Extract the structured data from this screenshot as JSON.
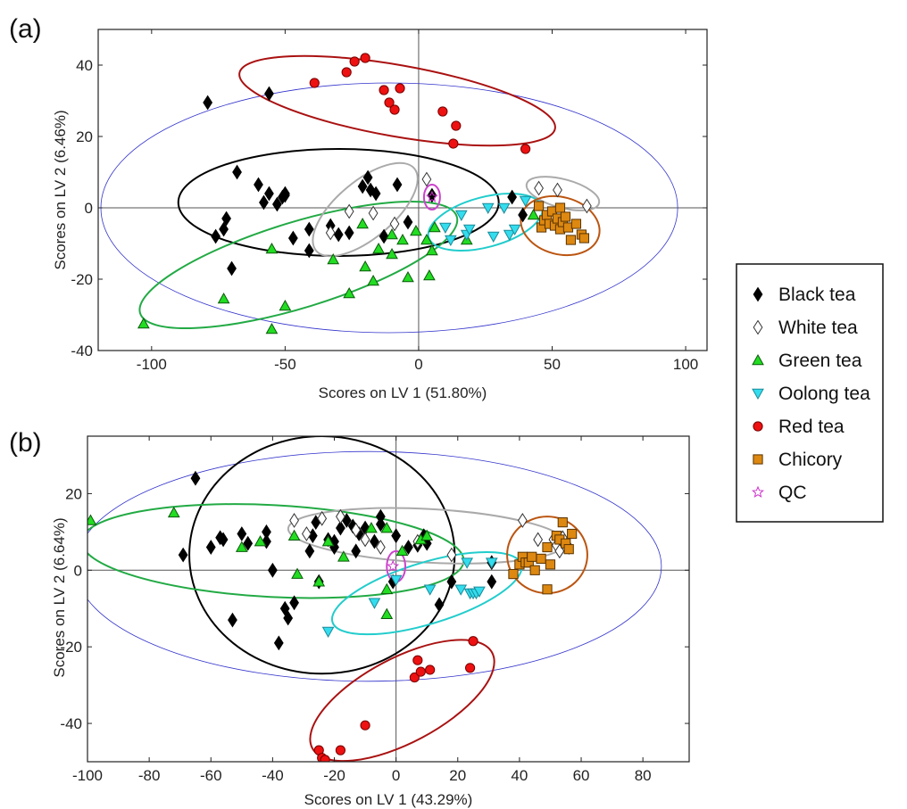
{
  "legend": {
    "entries": [
      {
        "name": "Black tea",
        "marker": "diamond",
        "fill": "#000000",
        "stroke": "#000000"
      },
      {
        "name": "White tea",
        "marker": "diamond",
        "fill": "#ffffff",
        "stroke": "#333333"
      },
      {
        "name": "Green tea",
        "marker": "triangle-up",
        "fill": "#22dd22",
        "stroke": "#0a5a0a"
      },
      {
        "name": "Oolong tea",
        "marker": "triangle-down",
        "fill": "#33ddee",
        "stroke": "#1a8a99"
      },
      {
        "name": "Red tea",
        "marker": "circle",
        "fill": "#ee1111",
        "stroke": "#770000"
      },
      {
        "name": "Chicory",
        "marker": "square",
        "fill": "#dd8811",
        "stroke": "#5a3300"
      },
      {
        "name": "QC",
        "marker": "star",
        "fill": "none",
        "stroke": "#cc33cc"
      }
    ]
  },
  "chart_data": [
    {
      "type": "scatter",
      "panel_label": "(a)",
      "xlabel": "Scores on LV 1 (51.80%)",
      "ylabel": "Scores on LV 2 (6.46%)",
      "xlim": [
        -120,
        108
      ],
      "ylim": [
        -40,
        50
      ],
      "xticks": [
        -100,
        -50,
        0,
        50,
        100
      ],
      "yticks": [
        -40,
        -20,
        0,
        20,
        40
      ],
      "grid": false,
      "reference_lines": {
        "x": 0,
        "y": 0
      },
      "series": [
        {
          "name": "Black tea",
          "points": [
            [
              -79,
              29.5
            ],
            [
              -56,
              32
            ],
            [
              -76,
              -8
            ],
            [
              -73,
              -6
            ],
            [
              -72,
              -3
            ],
            [
              -70,
              -17
            ],
            [
              -68,
              10
            ],
            [
              -60,
              6.5
            ],
            [
              -58,
              1.5
            ],
            [
              -56,
              4
            ],
            [
              -53,
              1
            ],
            [
              -51,
              3
            ],
            [
              -50,
              4
            ],
            [
              -50,
              3.5
            ],
            [
              -47,
              -8.5
            ],
            [
              -41,
              -6
            ],
            [
              -41,
              -12
            ],
            [
              -33,
              -5
            ],
            [
              -30,
              -7.5
            ],
            [
              -26,
              -7
            ],
            [
              -21,
              6
            ],
            [
              -19,
              8.5
            ],
            [
              -18,
              5
            ],
            [
              -16,
              4
            ],
            [
              -13,
              -8
            ],
            [
              -8,
              6.5
            ],
            [
              -4,
              -4
            ],
            [
              5,
              3.5
            ],
            [
              35,
              3
            ],
            [
              39,
              -2
            ]
          ]
        },
        {
          "name": "White tea",
          "points": [
            [
              -33,
              -7
            ],
            [
              -26,
              -1
            ],
            [
              -17,
              -1.5
            ],
            [
              -9,
              -4.5
            ],
            [
              3,
              8
            ],
            [
              45,
              5.5
            ],
            [
              52,
              5
            ],
            [
              63,
              0.5
            ]
          ]
        },
        {
          "name": "Green tea",
          "points": [
            [
              -103,
              -32.5
            ],
            [
              -73,
              -25.5
            ],
            [
              -55,
              -11.5
            ],
            [
              -55,
              -34
            ],
            [
              -50,
              -27.5
            ],
            [
              -32,
              -14.5
            ],
            [
              -26,
              -24
            ],
            [
              -21,
              -4.5
            ],
            [
              -20,
              -16.5
            ],
            [
              -17,
              -20.5
            ],
            [
              -15,
              -11.5
            ],
            [
              -10,
              -7.5
            ],
            [
              -10,
              -13
            ],
            [
              -6,
              -9
            ],
            [
              -4,
              -19.5
            ],
            [
              -1,
              -6.5
            ],
            [
              3,
              -9
            ],
            [
              4,
              -19
            ],
            [
              5,
              -12
            ],
            [
              6,
              -5.5
            ],
            [
              18,
              -9
            ],
            [
              43,
              -2
            ]
          ]
        },
        {
          "name": "Oolong tea",
          "points": [
            [
              10,
              -5.5
            ],
            [
              12,
              -9
            ],
            [
              16,
              -2
            ],
            [
              18,
              -7.5
            ],
            [
              19,
              -6
            ],
            [
              26,
              0
            ],
            [
              28,
              -8
            ],
            [
              32,
              0
            ],
            [
              34,
              -7.5
            ],
            [
              36,
              -6
            ],
            [
              40,
              2
            ]
          ]
        },
        {
          "name": "Red tea",
          "points": [
            [
              -39,
              35
            ],
            [
              -27,
              38
            ],
            [
              -24,
              41
            ],
            [
              -20,
              42
            ],
            [
              -13,
              33
            ],
            [
              -11,
              29.5
            ],
            [
              -9,
              27.5
            ],
            [
              -7,
              33.5
            ],
            [
              9,
              27
            ],
            [
              13,
              18
            ],
            [
              14,
              23
            ],
            [
              40,
              16.5
            ]
          ]
        },
        {
          "name": "Chicory",
          "points": [
            [
              45,
              0.5
            ],
            [
              46,
              -5.5
            ],
            [
              47,
              -3.5
            ],
            [
              48,
              -2
            ],
            [
              49,
              -4.5
            ],
            [
              50,
              -1
            ],
            [
              51,
              -5
            ],
            [
              52,
              -3
            ],
            [
              53,
              -6
            ],
            [
              53,
              0
            ],
            [
              54,
              -4
            ],
            [
              55,
              -2.5
            ],
            [
              56,
              -5.5
            ],
            [
              57,
              -9
            ],
            [
              59,
              -4.5
            ],
            [
              61,
              -7.5
            ],
            [
              62,
              -8.5
            ]
          ]
        },
        {
          "name": "QC",
          "points": [
            [
              5,
              3
            ]
          ]
        }
      ]
    },
    {
      "type": "scatter",
      "panel_label": "(b)",
      "xlabel": "Scores on LV 1 (43.29%)",
      "ylabel": "Scores on LV 2 (6.64%)",
      "xlim": [
        -100,
        95
      ],
      "ylim": [
        -50,
        35
      ],
      "xticks": [
        -100,
        -80,
        -60,
        -40,
        -20,
        0,
        20,
        40,
        60,
        80
      ],
      "yticks": [
        -40,
        -20,
        0,
        20
      ],
      "grid": false,
      "reference_lines": {
        "x": 0,
        "y": 0
      },
      "series": [
        {
          "name": "Black tea",
          "points": [
            [
              -65,
              24
            ],
            [
              -69,
              4
            ],
            [
              -60,
              6
            ],
            [
              -57,
              8.5
            ],
            [
              -56,
              8
            ],
            [
              -53,
              -13
            ],
            [
              -50,
              9.5
            ],
            [
              -48,
              7
            ],
            [
              -42,
              10
            ],
            [
              -42,
              7.5
            ],
            [
              -40,
              0
            ],
            [
              -38,
              -19
            ],
            [
              -36,
              -10
            ],
            [
              -35,
              -12.5
            ],
            [
              -33,
              -8.5
            ],
            [
              -28,
              5
            ],
            [
              -27,
              9
            ],
            [
              -26,
              12.5
            ],
            [
              -25,
              -3
            ],
            [
              -22,
              8
            ],
            [
              -20,
              7.5
            ],
            [
              -20,
              6
            ],
            [
              -18,
              11
            ],
            [
              -16,
              13
            ],
            [
              -14,
              11.5
            ],
            [
              -13,
              5
            ],
            [
              -12,
              9.5
            ],
            [
              -10,
              11
            ],
            [
              -7,
              7.5
            ],
            [
              -5,
              14
            ],
            [
              -5,
              12
            ],
            [
              0,
              9
            ],
            [
              -1,
              -3
            ],
            [
              4,
              6
            ],
            [
              7,
              6.5
            ],
            [
              9,
              9
            ],
            [
              10,
              7
            ],
            [
              14,
              -9
            ],
            [
              18,
              -3
            ],
            [
              31,
              2
            ],
            [
              31,
              -3
            ]
          ]
        },
        {
          "name": "White tea",
          "points": [
            [
              -33,
              13
            ],
            [
              -29,
              9.5
            ],
            [
              -24,
              13.5
            ],
            [
              -18,
              14
            ],
            [
              -13,
              10.5
            ],
            [
              -10,
              8
            ],
            [
              -5,
              6
            ],
            [
              7,
              7.5
            ],
            [
              18,
              4
            ],
            [
              41,
              13
            ],
            [
              46,
              8
            ],
            [
              51,
              8
            ],
            [
              52,
              6.5
            ],
            [
              53,
              5
            ],
            [
              54,
              8.5
            ],
            [
              56,
              6
            ]
          ]
        },
        {
          "name": "Green tea",
          "points": [
            [
              -99,
              13
            ],
            [
              -72,
              15
            ],
            [
              -44,
              7.5
            ],
            [
              -50,
              6
            ],
            [
              -33,
              9
            ],
            [
              -32,
              -1
            ],
            [
              -25,
              -3
            ],
            [
              -22,
              7.5
            ],
            [
              -17,
              3.5
            ],
            [
              -8,
              11
            ],
            [
              -3,
              11
            ],
            [
              2,
              5
            ],
            [
              -3,
              -5
            ],
            [
              -3,
              -11.5
            ],
            [
              8,
              8
            ],
            [
              10,
              9
            ]
          ]
        },
        {
          "name": "Oolong tea",
          "points": [
            [
              -22,
              -16
            ],
            [
              -7,
              -8.5
            ],
            [
              0,
              -2.5
            ],
            [
              11,
              -5
            ],
            [
              21,
              -5
            ],
            [
              23,
              2
            ],
            [
              24,
              -6
            ],
            [
              25,
              -6
            ],
            [
              26,
              -6
            ],
            [
              27,
              -5.5
            ],
            [
              31,
              2
            ]
          ]
        },
        {
          "name": "Red tea",
          "points": [
            [
              -25,
              -47
            ],
            [
              -24,
              -49
            ],
            [
              -23,
              -49.5
            ],
            [
              -18,
              -47
            ],
            [
              -10,
              -40.5
            ],
            [
              6,
              -28
            ],
            [
              7,
              -23.5
            ],
            [
              8,
              -26.5
            ],
            [
              11,
              -26
            ],
            [
              24,
              -25.5
            ],
            [
              25,
              -18.5
            ]
          ]
        },
        {
          "name": "Chicory",
          "points": [
            [
              38,
              -1
            ],
            [
              40,
              1.5
            ],
            [
              41,
              3.5
            ],
            [
              42,
              2
            ],
            [
              43,
              2
            ],
            [
              44,
              3.5
            ],
            [
              45,
              0
            ],
            [
              47,
              3
            ],
            [
              49,
              6
            ],
            [
              49,
              -5
            ],
            [
              50,
              1.5
            ],
            [
              52,
              9
            ],
            [
              53,
              8
            ],
            [
              54,
              12.5
            ],
            [
              55,
              7
            ],
            [
              56,
              5.5
            ],
            [
              57,
              9.5
            ]
          ]
        },
        {
          "name": "QC",
          "points": [
            [
              -1,
              1
            ]
          ]
        }
      ]
    }
  ]
}
